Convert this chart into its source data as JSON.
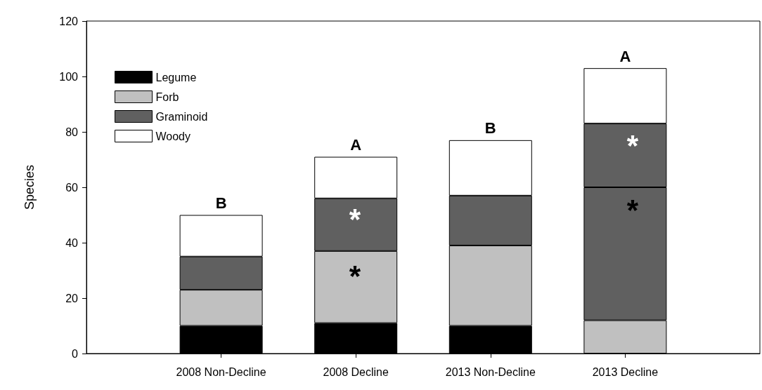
{
  "chart_data": {
    "type": "bar",
    "stacked": true,
    "ylabel": "Species",
    "categories": [
      "2008 Non-Decline",
      "2008 Decline",
      "2013 Non-Decline",
      "2013 Decline"
    ],
    "series": [
      {
        "name": "Legume",
        "color": "#000000",
        "colors": [
          "#000000",
          "#000000",
          "#000000",
          "#c0c0c0"
        ],
        "values": [
          10,
          11,
          10,
          12
        ]
      },
      {
        "name": "Forb",
        "color": "#c0c0c0",
        "colors": [
          "#c0c0c0",
          "#c0c0c0",
          "#c0c0c0",
          "#606060"
        ],
        "values": [
          13,
          26,
          29,
          48
        ]
      },
      {
        "name": "Graminoid",
        "color": "#606060",
        "values": [
          12,
          19,
          18,
          23
        ]
      },
      {
        "name": "Woody",
        "color": "#ffffff",
        "values": [
          15,
          15,
          20,
          20
        ]
      }
    ],
    "ylim": [
      0,
      120
    ],
    "yticks": [
      0,
      20,
      40,
      60,
      80,
      100,
      120
    ],
    "grid": false,
    "legend": "top left",
    "annotations": [
      {
        "text": "B",
        "x": "2008 Non-Decline",
        "y": 50
      },
      {
        "text": "A",
        "x": "2008 Decline",
        "y": 71
      },
      {
        "text": "B",
        "x": "2013 Non-Decline",
        "y": 77
      },
      {
        "text": "A",
        "x": "2013 Decline",
        "y": 103
      },
      "*",
      "*",
      "*",
      "*"
    ]
  }
}
